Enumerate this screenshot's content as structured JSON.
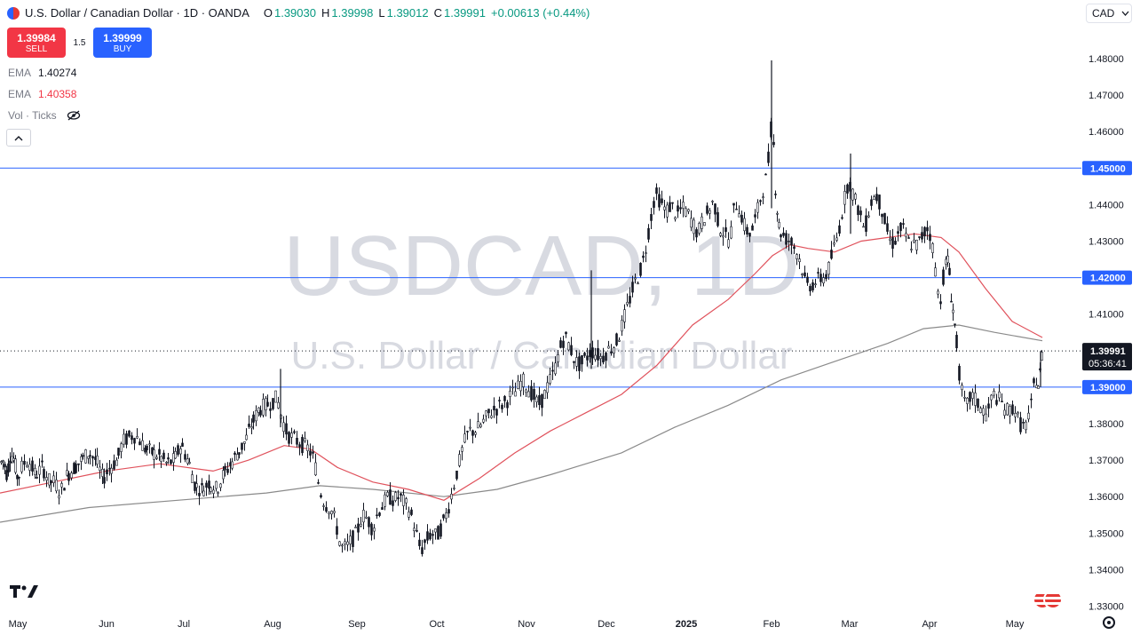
{
  "header": {
    "title": "U.S. Dollar / Canadian Dollar · 1D · OANDA",
    "ohlc": [
      {
        "k": "O",
        "v": "1.39030"
      },
      {
        "k": "H",
        "v": "1.39998"
      },
      {
        "k": "L",
        "v": "1.39012"
      },
      {
        "k": "C",
        "v": "1.39991"
      },
      {
        "k": "",
        "v": "+0.00613 (+0.44%)"
      }
    ]
  },
  "trade": {
    "sell_price": "1.39984",
    "sell_label": "SELL",
    "spread": "1.5",
    "buy_price": "1.39999",
    "buy_label": "BUY"
  },
  "indicators": [
    {
      "name": "EMA",
      "value": "1.40274",
      "color": "#787b86"
    },
    {
      "name": "EMA",
      "value": "1.40358",
      "color": "#f23645"
    },
    {
      "name": "Vol · Ticks",
      "value": ""
    }
  ],
  "currency": "CAD",
  "colors": {
    "up": "#089981",
    "down": "#131722",
    "ema_fast": "#e0525c",
    "ema_slow": "#8a8a8a",
    "hline": "#2962ff",
    "label_bg": "#2962ff"
  },
  "icons": [
    "eye-off-icon",
    "chevron-up-icon",
    "chevron-down-icon",
    "tradingview-logo-icon",
    "gear-icon",
    "flag-icon"
  ],
  "chart_data": {
    "type": "candlestick",
    "symbol": "USDCAD",
    "interval": "1D",
    "watermark": {
      "symbol": "USDCAD, 1D",
      "description": "U.S. Dollar / Canadian Dollar"
    },
    "ylim": [
      1.33,
      1.485
    ],
    "y_ticks": [
      "1.48000",
      "1.47000",
      "1.46000",
      "1.45000",
      "1.44000",
      "1.43000",
      "1.42000",
      "1.41000",
      "1.40000",
      "1.39000",
      "1.38000",
      "1.37000",
      "1.36000",
      "1.35000",
      "1.34000",
      "1.33000"
    ],
    "x_ticks": [
      "May",
      "Jun",
      "Jul",
      "Aug",
      "Sep",
      "Oct",
      "Nov",
      "Dec",
      "2025",
      "Feb",
      "Mar",
      "Apr",
      "May"
    ],
    "last_price": {
      "value": "1.39991",
      "countdown": "05:36:41"
    },
    "horizontal_lines": [
      1.45,
      1.42,
      1.39
    ],
    "points": [
      [
        0,
        1.369
      ],
      [
        4,
        1.37
      ],
      [
        8,
        1.366
      ],
      [
        12,
        1.372
      ],
      [
        16,
        1.37
      ],
      [
        20,
        1.365
      ],
      [
        26,
        1.369
      ],
      [
        32,
        1.37
      ],
      [
        40,
        1.366
      ],
      [
        48,
        1.368
      ],
      [
        56,
        1.364
      ],
      [
        62,
        1.364
      ],
      [
        68,
        1.361
      ],
      [
        76,
        1.366
      ],
      [
        84,
        1.368
      ],
      [
        92,
        1.37
      ],
      [
        100,
        1.372
      ],
      [
        108,
        1.37
      ],
      [
        116,
        1.365
      ],
      [
        124,
        1.368
      ],
      [
        132,
        1.37
      ],
      [
        138,
        1.375
      ],
      [
        144,
        1.376
      ],
      [
        150,
        1.377
      ],
      [
        156,
        1.376
      ],
      [
        164,
        1.373
      ],
      [
        172,
        1.372
      ],
      [
        180,
        1.371
      ],
      [
        188,
        1.369
      ],
      [
        196,
        1.37
      ],
      [
        204,
        1.374
      ],
      [
        212,
        1.37
      ],
      [
        220,
        1.363
      ],
      [
        228,
        1.362
      ],
      [
        236,
        1.364
      ],
      [
        244,
        1.362
      ],
      [
        252,
        1.366
      ],
      [
        260,
        1.369
      ],
      [
        268,
        1.372
      ],
      [
        276,
        1.375
      ],
      [
        284,
        1.38
      ],
      [
        292,
        1.384
      ],
      [
        300,
        1.385
      ],
      [
        306,
        1.386
      ],
      [
        312,
        1.387
      ],
      [
        318,
        1.381
      ],
      [
        324,
        1.377
      ],
      [
        330,
        1.376
      ],
      [
        336,
        1.375
      ],
      [
        342,
        1.374
      ],
      [
        348,
        1.373
      ],
      [
        354,
        1.37
      ],
      [
        360,
        1.362
      ],
      [
        366,
        1.358
      ],
      [
        372,
        1.357
      ],
      [
        378,
        1.353
      ],
      [
        384,
        1.346
      ],
      [
        390,
        1.346
      ],
      [
        396,
        1.348
      ],
      [
        402,
        1.35
      ],
      [
        408,
        1.355
      ],
      [
        414,
        1.354
      ],
      [
        420,
        1.351
      ],
      [
        426,
        1.356
      ],
      [
        432,
        1.358
      ],
      [
        438,
        1.36
      ],
      [
        444,
        1.359
      ],
      [
        450,
        1.36
      ],
      [
        456,
        1.358
      ],
      [
        462,
        1.356
      ],
      [
        468,
        1.351
      ],
      [
        474,
        1.345
      ],
      [
        480,
        1.348
      ],
      [
        486,
        1.35
      ],
      [
        492,
        1.349
      ],
      [
        498,
        1.352
      ],
      [
        504,
        1.356
      ],
      [
        510,
        1.362
      ],
      [
        516,
        1.368
      ],
      [
        522,
        1.374
      ],
      [
        528,
        1.378
      ],
      [
        534,
        1.378
      ],
      [
        540,
        1.379
      ],
      [
        546,
        1.381
      ],
      [
        552,
        1.383
      ],
      [
        558,
        1.384
      ],
      [
        564,
        1.385
      ],
      [
        570,
        1.386
      ],
      [
        576,
        1.388
      ],
      [
        582,
        1.389
      ],
      [
        588,
        1.392
      ],
      [
        594,
        1.39
      ],
      [
        600,
        1.388
      ],
      [
        606,
        1.385
      ],
      [
        612,
        1.387
      ],
      [
        618,
        1.391
      ],
      [
        624,
        1.394
      ],
      [
        630,
        1.4
      ],
      [
        636,
        1.404
      ],
      [
        642,
        1.401
      ],
      [
        648,
        1.397
      ],
      [
        654,
        1.396
      ],
      [
        660,
        1.398
      ],
      [
        666,
        1.4
      ],
      [
        672,
        1.399
      ],
      [
        678,
        1.398
      ],
      [
        684,
        1.4
      ],
      [
        690,
        1.401
      ],
      [
        696,
        1.403
      ],
      [
        702,
        1.408
      ],
      [
        708,
        1.413
      ],
      [
        714,
        1.418
      ],
      [
        720,
        1.421
      ],
      [
        726,
        1.426
      ],
      [
        732,
        1.435
      ],
      [
        738,
        1.443
      ],
      [
        744,
        1.441
      ],
      [
        750,
        1.438
      ],
      [
        756,
        1.44
      ],
      [
        762,
        1.437
      ],
      [
        768,
        1.439
      ],
      [
        774,
        1.438
      ],
      [
        780,
        1.435
      ],
      [
        786,
        1.432
      ],
      [
        792,
        1.436
      ],
      [
        798,
        1.438
      ],
      [
        804,
        1.441
      ],
      [
        810,
        1.434
      ],
      [
        816,
        1.432
      ],
      [
        822,
        1.43
      ],
      [
        828,
        1.441
      ],
      [
        834,
        1.438
      ],
      [
        840,
        1.433
      ],
      [
        846,
        1.432
      ],
      [
        852,
        1.437
      ],
      [
        858,
        1.443
      ],
      [
        864,
        1.448
      ],
      [
        870,
        1.465
      ],
      [
        874,
        1.442
      ],
      [
        878,
        1.433
      ],
      [
        884,
        1.431
      ],
      [
        890,
        1.43
      ],
      [
        896,
        1.428
      ],
      [
        902,
        1.424
      ],
      [
        908,
        1.418
      ],
      [
        914,
        1.418
      ],
      [
        920,
        1.419
      ],
      [
        926,
        1.42
      ],
      [
        932,
        1.421
      ],
      [
        938,
        1.427
      ],
      [
        944,
        1.432
      ],
      [
        950,
        1.44
      ],
      [
        956,
        1.447
      ],
      [
        962,
        1.442
      ],
      [
        968,
        1.438
      ],
      [
        974,
        1.433
      ],
      [
        980,
        1.44
      ],
      [
        986,
        1.443
      ],
      [
        992,
        1.44
      ],
      [
        998,
        1.434
      ],
      [
        1004,
        1.429
      ],
      [
        1010,
        1.431
      ],
      [
        1016,
        1.434
      ],
      [
        1022,
        1.43
      ],
      [
        1028,
        1.429
      ],
      [
        1034,
        1.429
      ],
      [
        1040,
        1.432
      ],
      [
        1046,
        1.434
      ],
      [
        1052,
        1.426
      ],
      [
        1058,
        1.412
      ],
      [
        1064,
        1.423
      ],
      [
        1068,
        1.425
      ],
      [
        1072,
        1.414
      ],
      [
        1076,
        1.406
      ],
      [
        1082,
        1.39
      ],
      [
        1088,
        1.384
      ],
      [
        1094,
        1.388
      ],
      [
        1100,
        1.386
      ],
      [
        1106,
        1.384
      ],
      [
        1112,
        1.382
      ],
      [
        1118,
        1.388
      ],
      [
        1124,
        1.387
      ],
      [
        1130,
        1.385
      ],
      [
        1136,
        1.383
      ],
      [
        1142,
        1.385
      ],
      [
        1148,
        1.38
      ],
      [
        1154,
        1.379
      ],
      [
        1160,
        1.382
      ],
      [
        1166,
        1.393
      ],
      [
        1170,
        1.39
      ],
      [
        1174,
        1.3999
      ]
    ],
    "ema_fast": [
      [
        0,
        1.361
      ],
      [
        60,
        1.364
      ],
      [
        120,
        1.367
      ],
      [
        180,
        1.369
      ],
      [
        240,
        1.367
      ],
      [
        280,
        1.37
      ],
      [
        320,
        1.374
      ],
      [
        350,
        1.373
      ],
      [
        380,
        1.368
      ],
      [
        420,
        1.364
      ],
      [
        460,
        1.362
      ],
      [
        500,
        1.359
      ],
      [
        540,
        1.365
      ],
      [
        580,
        1.372
      ],
      [
        620,
        1.378
      ],
      [
        660,
        1.383
      ],
      [
        700,
        1.388
      ],
      [
        740,
        1.396
      ],
      [
        780,
        1.407
      ],
      [
        820,
        1.414
      ],
      [
        850,
        1.421
      ],
      [
        870,
        1.426
      ],
      [
        890,
        1.429
      ],
      [
        910,
        1.428
      ],
      [
        940,
        1.427
      ],
      [
        970,
        1.43
      ],
      [
        1000,
        1.431
      ],
      [
        1030,
        1.432
      ],
      [
        1060,
        1.431
      ],
      [
        1080,
        1.427
      ],
      [
        1110,
        1.417
      ],
      [
        1140,
        1.408
      ],
      [
        1174,
        1.4036
      ]
    ],
    "ema_slow": [
      [
        0,
        1.353
      ],
      [
        100,
        1.357
      ],
      [
        200,
        1.359
      ],
      [
        300,
        1.361
      ],
      [
        360,
        1.363
      ],
      [
        420,
        1.362
      ],
      [
        500,
        1.36
      ],
      [
        560,
        1.362
      ],
      [
        620,
        1.366
      ],
      [
        700,
        1.372
      ],
      [
        760,
        1.379
      ],
      [
        820,
        1.385
      ],
      [
        880,
        1.392
      ],
      [
        940,
        1.397
      ],
      [
        1000,
        1.402
      ],
      [
        1040,
        1.406
      ],
      [
        1080,
        1.407
      ],
      [
        1120,
        1.405
      ],
      [
        1174,
        1.4027
      ]
    ]
  }
}
